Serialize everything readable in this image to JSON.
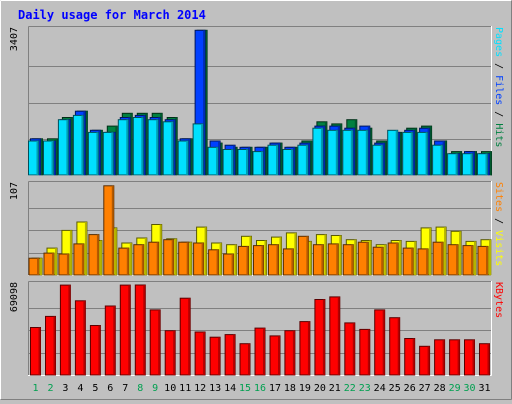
{
  "chart_data": {
    "type": "bar",
    "title": "Daily usage for March 2014",
    "categories": [
      "1",
      "2",
      "3",
      "4",
      "5",
      "6",
      "7",
      "8",
      "9",
      "10",
      "11",
      "12",
      "13",
      "14",
      "15",
      "16",
      "17",
      "18",
      "19",
      "20",
      "21",
      "22",
      "23",
      "24",
      "25",
      "26",
      "27",
      "28",
      "29",
      "30",
      "31"
    ],
    "weekend_days": [
      "1",
      "2",
      "8",
      "9",
      "15",
      "16",
      "22",
      "23",
      "29",
      "30"
    ],
    "colors": {
      "hits": "#008040",
      "files": "#0040ff",
      "pages": "#00e0ff",
      "visits": "#ffff00",
      "sites": "#ff8000",
      "kbytes": "#ff0000",
      "background": "#c0c0c0",
      "panel": "#c0c0c0",
      "title": "#0000ff",
      "weekend_label": "#00a050",
      "weekday_label": "#000000"
    },
    "panels": [
      {
        "id": "hits",
        "max_label": "3407",
        "ylim": [
          0,
          3407
        ],
        "axis_label_parts": [
          {
            "text": "Pages",
            "color": "#00e0ff"
          },
          {
            "text": " / ",
            "color": "#000000"
          },
          {
            "text": "Files",
            "color": "#0040ff"
          },
          {
            "text": " / ",
            "color": "#000000"
          },
          {
            "text": "Hits",
            "color": "#008040"
          }
        ],
        "series": [
          {
            "name": "Hits",
            "color": "#008040",
            "values": [
              850,
              850,
              1350,
              1500,
              1050,
              1150,
              1450,
              1450,
              1450,
              1350,
              850,
              3400,
              750,
              650,
              650,
              650,
              750,
              650,
              800,
              1250,
              1200,
              1300,
              1100,
              800,
              1000,
              1100,
              1150,
              800,
              550,
              550,
              550
            ]
          },
          {
            "name": "Files",
            "color": "#0040ff",
            "values": [
              850,
              800,
              1300,
              1500,
              1050,
              1000,
              1350,
              1400,
              1350,
              1300,
              850,
              3400,
              800,
              700,
              650,
              650,
              750,
              650,
              750,
              1150,
              1150,
              1100,
              1150,
              750,
              1000,
              1050,
              1100,
              800,
              500,
              550,
              500
            ]
          },
          {
            "name": "Pages",
            "color": "#00e0ff",
            "values": [
              800,
              800,
              1300,
              1400,
              1000,
              1000,
              1300,
              1350,
              1300,
              1250,
              800,
              1200,
              650,
              600,
              600,
              550,
              700,
              600,
              700,
              1100,
              1050,
              1050,
              1050,
              700,
              1050,
              1000,
              1000,
              700,
              500,
              500,
              500
            ]
          }
        ]
      },
      {
        "id": "visits",
        "max_label": "107",
        "ylim": [
          0,
          107
        ],
        "axis_label_parts": [
          {
            "text": "Sites",
            "color": "#ff8000"
          },
          {
            "text": " / ",
            "color": "#000000"
          },
          {
            "text": "Visits",
            "color": "#ffff00"
          }
        ],
        "series": [
          {
            "name": "Visits",
            "color": "#ffff00",
            "values": [
              20,
              32,
              53,
              63,
              41,
              56,
              38,
              44,
              60,
              43,
              39,
              57,
              38,
              36,
              46,
              41,
              45,
              50,
              40,
              48,
              47,
              42,
              41,
              36,
              41,
              40,
              56,
              57,
              52,
              40,
              42
            ]
          },
          {
            "name": "Sites",
            "color": "#ff8000",
            "values": [
              20,
              26,
              25,
              37,
              48,
              106,
              32,
              36,
              39,
              42,
              39,
              38,
              30,
              25,
              34,
              35,
              36,
              31,
              46,
              36,
              37,
              36,
              39,
              33,
              38,
              32,
              31,
              39,
              36,
              35,
              34
            ]
          }
        ]
      },
      {
        "id": "kbytes",
        "max_label": "69098",
        "ylim": [
          0,
          69098
        ],
        "axis_label_parts": [
          {
            "text": "KBytes",
            "color": "#ff0000"
          }
        ],
        "series": [
          {
            "name": "KBytes",
            "color": "#ff0000",
            "values": [
              36500,
              45000,
              69000,
              57000,
              38000,
              53000,
              69000,
              69098,
              50000,
              34000,
              59000,
              33000,
              29000,
              31000,
              24000,
              36000,
              30000,
              34000,
              41000,
              58000,
              60000,
              40000,
              35000,
              50000,
              44000,
              28000,
              22000,
              27000,
              27000,
              27000,
              24000
            ]
          }
        ]
      }
    ]
  }
}
